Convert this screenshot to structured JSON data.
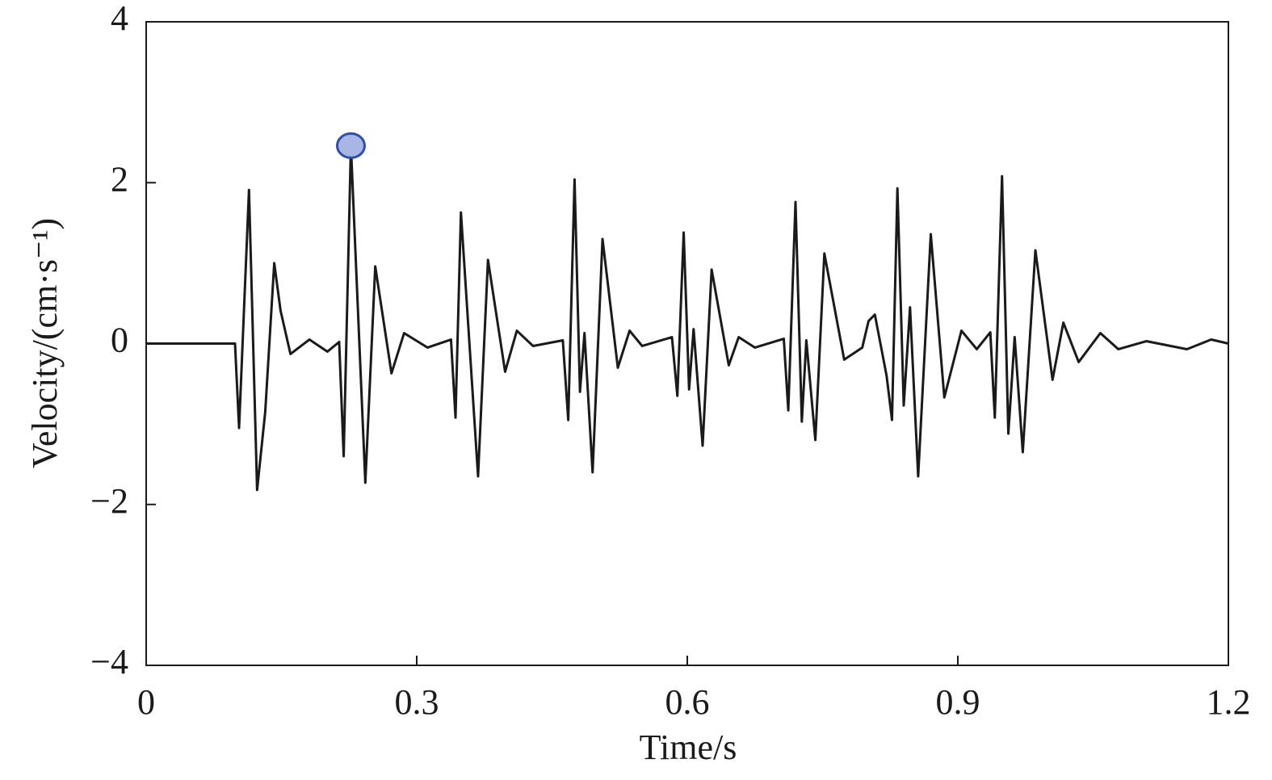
{
  "chart_data": {
    "type": "line",
    "xlabel": "Time/s",
    "ylabel": "Velocity/(cm·s⁻¹)",
    "xlim": [
      0,
      1.2
    ],
    "xticks": [
      0,
      0.3,
      0.6,
      0.9,
      1.2
    ],
    "ylim": [
      -4,
      4
    ],
    "yticks": [
      {
        "value": -4,
        "label": "−4"
      },
      {
        "value": -2,
        "label": "−2"
      },
      0,
      2,
      4
    ],
    "grid": false,
    "series": [
      {
        "color": "#1a1a1a",
        "x": [
          0,
          0.0985,
          0.103,
          0.114,
          0.123,
          0.132,
          0.142,
          0.149,
          0.16,
          0.181,
          0.201,
          0.214,
          0.219,
          0.227,
          0.243,
          0.254,
          0.272,
          0.286,
          0.312,
          0.338,
          0.343,
          0.349,
          0.368,
          0.379,
          0.398,
          0.411,
          0.429,
          0.462,
          0.468,
          0.475,
          0.481,
          0.486,
          0.495,
          0.506,
          0.523,
          0.536,
          0.55,
          0.583,
          0.589,
          0.596,
          0.602,
          0.607,
          0.617,
          0.627,
          0.646,
          0.657,
          0.675,
          0.707,
          0.712,
          0.72,
          0.727,
          0.732,
          0.742,
          0.752,
          0.774,
          0.794,
          0.801,
          0.808,
          0.821,
          0.827,
          0.833,
          0.84,
          0.847,
          0.856,
          0.87,
          0.885,
          0.904,
          0.921,
          0.936,
          0.941,
          0.949,
          0.956,
          0.963,
          0.972,
          0.986,
          1.005,
          1.017,
          1.034,
          1.058,
          1.078,
          1.109,
          1.154,
          1.181,
          1.2
        ],
        "values": [
          0,
          0,
          -1.05,
          1.91,
          -1.82,
          -0.85,
          1.0,
          0.41,
          -0.13,
          0.05,
          -0.1,
          0.02,
          -1.4,
          2.46,
          -1.73,
          0.96,
          -0.37,
          0.13,
          -0.05,
          0.05,
          -0.92,
          1.63,
          -1.65,
          1.04,
          -0.35,
          0.16,
          -0.03,
          0.04,
          -0.95,
          2.04,
          -0.6,
          0.13,
          -1.6,
          1.3,
          -0.3,
          0.16,
          -0.03,
          0.08,
          -0.65,
          1.38,
          -0.57,
          0.18,
          -1.27,
          0.92,
          -0.27,
          0.08,
          -0.05,
          0.06,
          -0.83,
          1.76,
          -0.97,
          0.04,
          -1.2,
          1.12,
          -0.2,
          -0.05,
          0.28,
          0.36,
          -0.4,
          -0.95,
          1.93,
          -0.77,
          0.45,
          -1.65,
          1.36,
          -0.67,
          0.16,
          -0.07,
          0.14,
          -0.92,
          2.08,
          -1.12,
          0.08,
          -1.35,
          1.16,
          -0.45,
          0.26,
          -0.23,
          0.13,
          -0.07,
          0.03,
          -0.07,
          0.05,
          0
        ]
      }
    ],
    "highlight": {
      "x": 0.227,
      "y": 2.46,
      "color": "#a9b6e3",
      "stroke": "#2e4fa8"
    }
  }
}
